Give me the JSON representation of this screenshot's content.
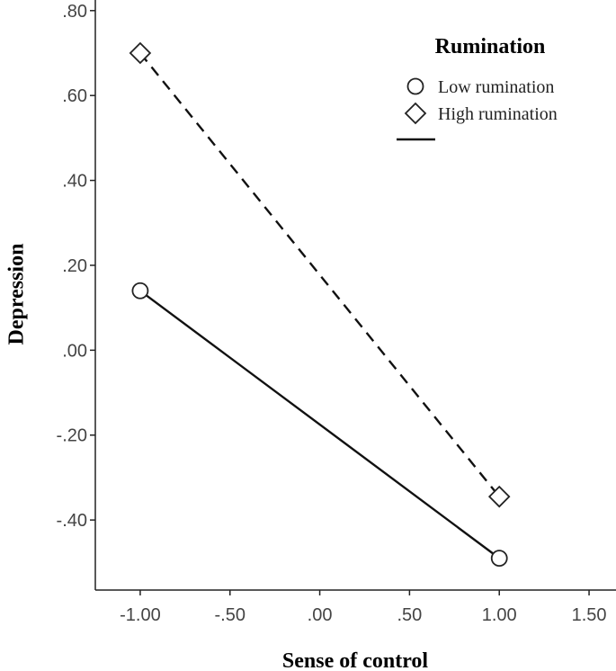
{
  "chart_data": {
    "type": "line",
    "xlabel": "Sense of control",
    "ylabel": "Depression",
    "xlim": [
      -1.25,
      1.65
    ],
    "ylim": [
      -0.565,
      0.825
    ],
    "xticks": [
      {
        "value": -1.0,
        "label": "-1.00"
      },
      {
        "value": -0.5,
        "label": "-.50"
      },
      {
        "value": 0.0,
        "label": ".00"
      },
      {
        "value": 0.5,
        "label": ".50"
      },
      {
        "value": 1.0,
        "label": "1.00"
      },
      {
        "value": 1.5,
        "label": "1.50"
      }
    ],
    "yticks": [
      {
        "value": 0.8,
        "label": ".80"
      },
      {
        "value": 0.6,
        "label": ".60"
      },
      {
        "value": 0.4,
        "label": ".40"
      },
      {
        "value": 0.2,
        "label": ".20"
      },
      {
        "value": 0.0,
        "label": ".00"
      },
      {
        "value": -0.2,
        "label": "-.20"
      },
      {
        "value": -0.4,
        "label": "-.40"
      }
    ],
    "grid": false,
    "legend": {
      "title": "Rumination",
      "placement": "top-right"
    },
    "series": [
      {
        "name": "Low rumination",
        "marker": "circle",
        "line": "solid",
        "x": [
          -1.0,
          1.0
        ],
        "y": [
          0.14,
          -0.49
        ]
      },
      {
        "name": "High rumination",
        "marker": "diamond",
        "line": "dashed",
        "x": [
          -1.0,
          1.0
        ],
        "y": [
          0.7,
          -0.345
        ]
      }
    ]
  }
}
